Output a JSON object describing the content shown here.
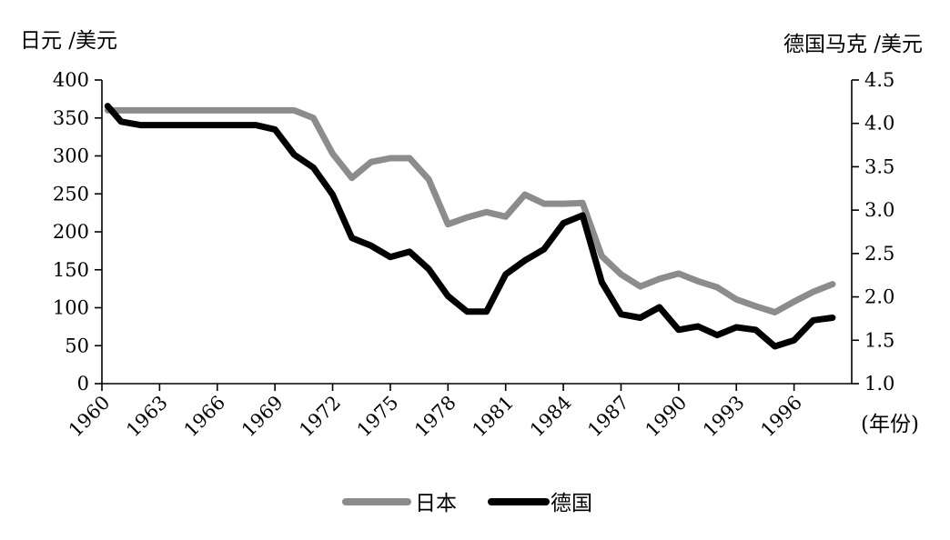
{
  "chart_data": {
    "type": "line",
    "title": "",
    "ylabel_left": "日元 /美元",
    "ylabel_right": "德国马克 /美元",
    "xlabel": "(年份)",
    "xlim": [
      1960,
      1999
    ],
    "ylim_left": [
      0,
      400
    ],
    "ylim_right": [
      1.0,
      4.5
    ],
    "x_ticks": [
      "1960",
      "1963",
      "1966",
      "1969",
      "1972",
      "1975",
      "1978",
      "1981",
      "1984",
      "1987",
      "1990",
      "1993",
      "1996"
    ],
    "y_ticks_left": [
      "0",
      "50",
      "100",
      "150",
      "200",
      "250",
      "300",
      "350",
      "400"
    ],
    "y_ticks_right": [
      "1.0",
      "1.5",
      "2.0",
      "2.5",
      "3.0",
      "3.5",
      "4.0",
      "4.5"
    ],
    "grid": false,
    "legend_position": "bottom-center",
    "colors": {
      "japan": "#8c8c8c",
      "germany": "#000000"
    },
    "series": [
      {
        "name": "日本",
        "axis": "left",
        "x": [
          1960.3,
          1961,
          1962,
          1963,
          1964,
          1965,
          1966,
          1967,
          1968,
          1969,
          1970,
          1971,
          1972,
          1973,
          1974,
          1975,
          1976,
          1977,
          1978,
          1979,
          1980,
          1981,
          1982,
          1983,
          1984,
          1985,
          1986,
          1987,
          1988,
          1989,
          1990,
          1991,
          1992,
          1993,
          1994,
          1995,
          1996,
          1997,
          1998
        ],
        "values": [
          360,
          360,
          360,
          360,
          360,
          360,
          360,
          360,
          360,
          360,
          360,
          350,
          303,
          271,
          292,
          297,
          297,
          269,
          210,
          219,
          226,
          220,
          249,
          237,
          237,
          238,
          168,
          144,
          128,
          138,
          145,
          135,
          127,
          111,
          102,
          94,
          108,
          121,
          131
        ]
      },
      {
        "name": "德国",
        "axis": "right",
        "x": [
          1960.3,
          1961,
          1962,
          1963,
          1964,
          1965,
          1966,
          1967,
          1968,
          1969,
          1970,
          1971,
          1972,
          1973,
          1974,
          1975,
          1976,
          1977,
          1978,
          1979,
          1980,
          1981,
          1982,
          1983,
          1984,
          1985,
          1986,
          1987,
          1988,
          1989,
          1990,
          1991,
          1992,
          1993,
          1994,
          1995,
          1996,
          1997,
          1998
        ],
        "values": [
          4.2,
          4.02,
          3.98,
          3.98,
          3.98,
          3.98,
          3.98,
          3.98,
          3.98,
          3.93,
          3.64,
          3.49,
          3.18,
          2.68,
          2.59,
          2.46,
          2.52,
          2.32,
          2.01,
          1.83,
          1.83,
          2.26,
          2.42,
          2.55,
          2.85,
          2.94,
          2.17,
          1.8,
          1.76,
          1.88,
          1.62,
          1.66,
          1.56,
          1.65,
          1.62,
          1.43,
          1.5,
          1.73,
          1.76
        ]
      }
    ]
  }
}
